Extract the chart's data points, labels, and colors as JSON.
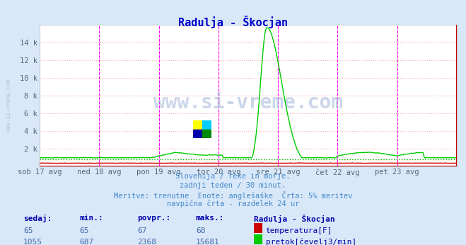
{
  "title": "Radulja - Škocjan",
  "title_color": "#0000cc",
  "bg_color": "#d8e8f8",
  "plot_bg_color": "#ffffff",
  "grid_color": "#ffaaaa",
  "grid_style": ":",
  "ylim": [
    0,
    16000
  ],
  "xlim": [
    0,
    336
  ],
  "xtick_positions": [
    0,
    48,
    96,
    144,
    192,
    240,
    288,
    336
  ],
  "xtick_labels": [
    "sob 17 avg",
    "ned 18 avg",
    "pon 19 avg",
    "tor 20 avg",
    "sre 21 avg",
    "čet 22 avg",
    "pet 23 avg",
    ""
  ],
  "vline_positions": [
    48,
    96,
    144,
    192,
    240,
    288
  ],
  "vline_color": "#ff00ff",
  "vline_style": "--",
  "temp_color": "#cc0000",
  "flow_color": "#00cc00",
  "dotted_line_color": "#00aa00",
  "watermark_text": "www.si-vreme.com",
  "watermark_color": "#aabbdd",
  "sidebar_text": "www.si-vreme.com",
  "sidebar_color": "#aabbdd",
  "subtitle_lines": [
    "Slovenija / reke in morje.",
    "zadnji teden / 30 minut.",
    "Meritve: trenutne  Enote: anglešaške  Črta: 5% meritev",
    "navpična črta - razdelek 24 ur"
  ],
  "subtitle_color": "#4488cc",
  "table_header": [
    "sedaj:",
    "min.:",
    "povpr.:",
    "maks.:",
    "Radulja - Škocjan"
  ],
  "table_row1_vals": [
    "65",
    "65",
    "67",
    "68"
  ],
  "table_row1_label": "temperatura[F]",
  "table_row1_color": "#cc0000",
  "table_row2_vals": [
    "1055",
    "687",
    "2368",
    "15681"
  ],
  "table_row2_label": "pretok[čevelj3/min]",
  "table_row2_color": "#00cc00",
  "table_color": "#0000aa",
  "table_value_color": "#4466aa",
  "flow_max": 15681,
  "n_points": 337
}
